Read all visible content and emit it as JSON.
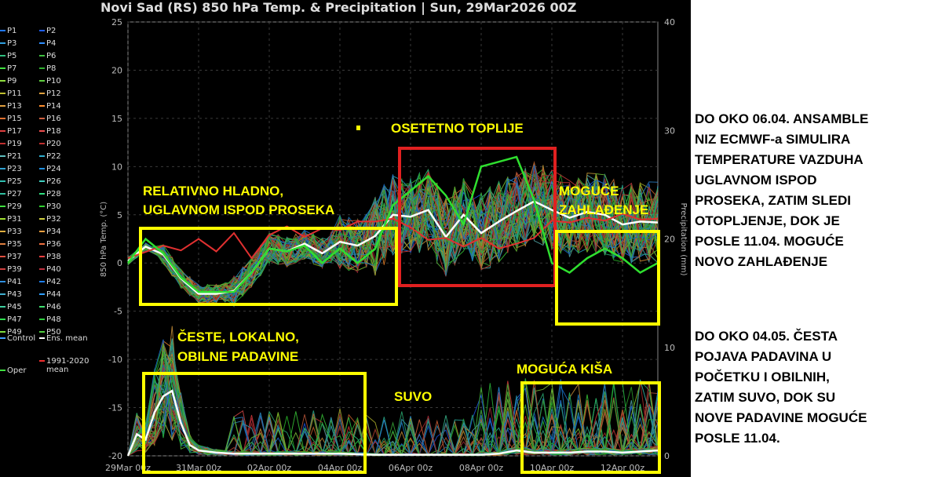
{
  "title": "Novi Sad  (RS)  850 hPa Temp. & Precipitation | Sun, 29Mar2026 00Z",
  "chart_data": {
    "type": "line",
    "title": "Novi Sad  (RS)  850 hPa Temp. & Precipitation | Sun, 29Mar2026 00Z",
    "ylabel": "850 hPa Temp. (°C)",
    "y2label": "Precipitation (mm)",
    "ylim": [
      -20,
      25
    ],
    "y2lim": [
      0,
      40
    ],
    "yticks": [
      "25",
      "20",
      "15",
      "10",
      "5",
      "0",
      "-5",
      "-10",
      "-15",
      "-20"
    ],
    "y2ticks": [
      "40",
      "30",
      "20",
      "10",
      "0"
    ],
    "xticks": [
      "29Mar 00z",
      "31Mar 00z",
      "02Apr 00z",
      "04Apr 00z",
      "06Apr 00z",
      "08Apr 00z",
      "10Apr 00z",
      "12Apr 00z"
    ],
    "grid": true,
    "legend": {
      "placement": "left",
      "members": [
        "P1",
        "P2",
        "P3",
        "P4",
        "P5",
        "P6",
        "P7",
        "P8",
        "P9",
        "P10",
        "P11",
        "P12",
        "P13",
        "P14",
        "P15",
        "P16",
        "P17",
        "P18",
        "P19",
        "P20",
        "P21",
        "P22",
        "P23",
        "P24",
        "P25",
        "P26",
        "P27",
        "P28",
        "P29",
        "P30",
        "P31",
        "P32",
        "P33",
        "P34",
        "P35",
        "P36",
        "P37",
        "P38",
        "P39",
        "P40",
        "P41",
        "P42",
        "P43",
        "P44",
        "P45",
        "P46",
        "P47",
        "P48",
        "P49",
        "P50"
      ],
      "member_colors": [
        "#1f77ff",
        "#1f5fff",
        "#2f9fdf",
        "#2f8fff",
        "#2fbf7f",
        "#3fbf3f",
        "#3fdf3f",
        "#2faf2f",
        "#8fdf3f",
        "#5fcf3f",
        "#bfbf2f",
        "#dfa03f",
        "#df9f3f",
        "#ff8f2f",
        "#df6f2f",
        "#cf5f3f",
        "#df3f3f",
        "#ef4f4f",
        "#c02f2f",
        "#bf2f2f",
        "#5fbfbf",
        "#2fafcf",
        "#2f9fcf",
        "#1f8fdf",
        "#2fbfaf",
        "#3fcfbf",
        "#2fbf9f",
        "#2fdf7f",
        "#3fdf3f",
        "#2fcf2f",
        "#9fdf2f",
        "#cfcf3f",
        "#dfaf3f",
        "#ef9f3f",
        "#df7f3f",
        "#ef6f3f",
        "#df4f3f",
        "#ef3f3f",
        "#cf3f3f",
        "#bf2f3f",
        "#2f8fdf",
        "#1f7fef",
        "#3fafcf",
        "#2f9fff",
        "#3fcf9f",
        "#3fdf6f",
        "#2fdf4f",
        "#2fcf3f",
        "#7fdf3f",
        "#4fcf3f"
      ],
      "extra": [
        {
          "label": "Control",
          "color": "#3f9fff"
        },
        {
          "label": "Ens. mean",
          "color": "#ffffff"
        },
        {
          "label": "1991-2020",
          "label2": "mean",
          "color": "#ef2f2f"
        },
        {
          "label": "Oper",
          "color": "#3fdf3f"
        }
      ]
    },
    "series": [
      {
        "name": "Ens. mean",
        "axis": "temp",
        "x": [
          0,
          0.5,
          1,
          1.5,
          2,
          2.5,
          3,
          3.5,
          4,
          4.5,
          5,
          5.5,
          6,
          6.5,
          7,
          7.5,
          8,
          8.5,
          9,
          9.5,
          10,
          10.5,
          11,
          11.5,
          12,
          12.5,
          13,
          13.5,
          14,
          14.5,
          15
        ],
        "values": [
          0.2,
          1.7,
          0.9,
          -1.6,
          -3.2,
          -3.2,
          -2.9,
          -1.0,
          1.5,
          1.2,
          2.0,
          1.0,
          2.2,
          1.8,
          2.8,
          5.0,
          4.8,
          5.5,
          2.7,
          5.0,
          3.1,
          4.3,
          5.4,
          6.4,
          5.5,
          4.7,
          5.3,
          5.0,
          4.0,
          4.3,
          4.2
        ]
      },
      {
        "name": "1991-2020 mean",
        "axis": "temp",
        "x": [
          0,
          1,
          1.5,
          2,
          2.5,
          3,
          3.5,
          4,
          4.5,
          5,
          5.5,
          6,
          6.5,
          7,
          7.5,
          8,
          8.5,
          9,
          9.5,
          10,
          10.5,
          11,
          11.5,
          12,
          12.5,
          13,
          13.5,
          14,
          14.5,
          15
        ],
        "values": [
          0.5,
          1.8,
          1.3,
          2.5,
          1.2,
          3.1,
          0.5,
          2.9,
          3.8,
          2.7,
          3.6,
          3.4,
          4.3,
          4.3,
          4.6,
          3.7,
          2.4,
          2.6,
          1.7,
          2.6,
          1.5,
          2.0,
          2.6,
          4.4,
          4.2,
          4.7,
          4.4,
          5.1,
          4.5,
          4.6
        ]
      },
      {
        "name": "Oper",
        "axis": "temp",
        "x": [
          0,
          0.5,
          1,
          1.5,
          2,
          2.5,
          3,
          3.5,
          4,
          4.5,
          5,
          5.5,
          6,
          6.5,
          7,
          7.5,
          8,
          8.5,
          9,
          9.5,
          10,
          10.5,
          11,
          11.5,
          12,
          12.5,
          13,
          13.5,
          14,
          14.5,
          15
        ],
        "values": [
          0,
          2.5,
          1,
          -1.5,
          -3,
          -3,
          -3,
          -1,
          1.5,
          1.2,
          1.8,
          0,
          1.5,
          0,
          1.5,
          6,
          7.5,
          9,
          7,
          4,
          10,
          10.5,
          11,
          6.5,
          0,
          -1,
          0.5,
          1.5,
          0.5,
          -1,
          0
        ]
      },
      {
        "name": "Ens. mean precipitation",
        "axis": "precip",
        "x": [
          0,
          0.25,
          0.5,
          0.75,
          1,
          1.25,
          1.5,
          1.75,
          2,
          2.5,
          3,
          3.5,
          4,
          5,
          6,
          7,
          8,
          9,
          10,
          10.5,
          11,
          11.5,
          12,
          12.5,
          13,
          13.5,
          14,
          14.5,
          15
        ],
        "values": [
          0,
          2,
          1.5,
          4,
          5.5,
          6,
          3,
          1,
          0.5,
          0.3,
          0.2,
          0.2,
          0.2,
          0.2,
          0.2,
          0.1,
          0.1,
          0.1,
          0.1,
          0.2,
          0.5,
          0.3,
          0.3,
          0.3,
          0.4,
          0.4,
          0.3,
          0.4,
          0.5
        ]
      }
    ]
  },
  "annotations": {
    "cold_line1": "RELATIVNO HLADNO,",
    "cold_line2": "UGLAVNOM ISPOD PROSEKA",
    "warm": "OSETETNO TOPLIJE",
    "cooling_line1": "MOGUĆE",
    "cooling_line2": "ZAHLAĐENJE",
    "rain_often_line1": "ČESTE, LOKALNO,",
    "rain_often_line2": "OBILNE PADAVINE",
    "dry": "SUVO",
    "rain_possible": "MOGUĆA KIŠA"
  },
  "side_notes": {
    "note1_lines": [
      "DO OKO 06.04. ANSAMBLE",
      "NIZ ECMWF-a SIMULIRA",
      "TEMPERATURE VAZDUHA",
      "UGLAVNOM ISPOD",
      "PROSEKA, ZATIM SLEDI",
      "OTOPLJENJE, DOK JE",
      "POSLE 11.04. MOGUĆE",
      "NOVO ZAHLAĐENJE"
    ],
    "note2_lines": [
      "DO OKO 04.05. ČESTA",
      "POJAVA PADAVINA U",
      "POČETKU I OBILNIH,",
      "ZATIM SUVO, DOK SU",
      "NOVE PADAVINE MOGUĆE",
      "POSLE 11.04."
    ]
  },
  "colors": {
    "background": "#000000",
    "annotation_text": "#ffff00",
    "box_yellow": "#ffff00",
    "box_red": "#e02020",
    "mean_line": "#ffffff",
    "climate_line": "#e03030",
    "oper_line": "#2fdf2f"
  }
}
